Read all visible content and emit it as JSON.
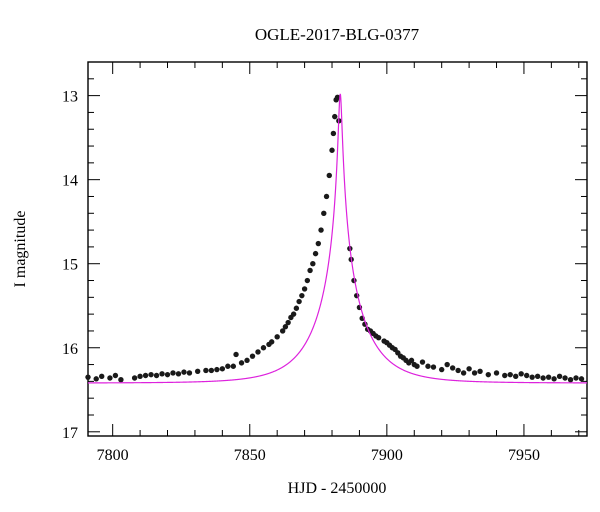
{
  "chart_data": {
    "type": "scatter",
    "title": "OGLE-2017-BLG-0377",
    "xlabel": "HJD - 2450000",
    "ylabel": "I magnitude",
    "xlim": [
      7791,
      7973
    ],
    "ylim": [
      17.05,
      12.6
    ],
    "y_inverted": true,
    "x_ticks": [
      7800,
      7850,
      7900,
      7950
    ],
    "y_ticks": [
      13,
      14,
      15,
      16,
      17
    ],
    "grid": false,
    "colors": {
      "data": "#1a1a1a",
      "model": "#dd22dd",
      "frame": "#000000"
    },
    "series": [
      {
        "kind": "points",
        "x": [
          7791,
          7794,
          7796,
          7799,
          7801,
          7803,
          7808,
          7810,
          7812,
          7814,
          7816,
          7818,
          7820,
          7822,
          7824,
          7826,
          7828,
          7831,
          7834,
          7836,
          7838,
          7840,
          7842,
          7844,
          7845,
          7847,
          7849,
          7851,
          7853,
          7855,
          7857,
          7858,
          7860,
          7862,
          7863,
          7864,
          7865,
          7866,
          7867,
          7868,
          7869,
          7870,
          7871,
          7872,
          7873,
          7874,
          7875,
          7876,
          7877,
          7878,
          7879,
          7880,
          7880.5,
          7881,
          7881.5,
          7882,
          7882.5,
          7886.5,
          7887,
          7888,
          7889,
          7890,
          7891,
          7892,
          7893,
          7894,
          7895,
          7896,
          7897,
          7899,
          7900,
          7901,
          7902,
          7903,
          7904,
          7905,
          7906,
          7907,
          7908,
          7909,
          7910,
          7911,
          7913,
          7915,
          7917,
          7920,
          7922,
          7924,
          7926,
          7928,
          7930,
          7932,
          7934,
          7937,
          7940,
          7943,
          7945,
          7947,
          7949,
          7951,
          7953,
          7955,
          7957,
          7959,
          7961,
          7963,
          7965,
          7967,
          7969,
          7971
        ],
        "y": [
          16.35,
          16.37,
          16.34,
          16.36,
          16.33,
          16.38,
          16.36,
          16.34,
          16.33,
          16.32,
          16.33,
          16.31,
          16.32,
          16.3,
          16.31,
          16.29,
          16.3,
          16.28,
          16.27,
          16.27,
          16.26,
          16.25,
          16.22,
          16.22,
          16.08,
          16.18,
          16.15,
          16.1,
          16.05,
          16.0,
          15.96,
          15.93,
          15.87,
          15.8,
          15.75,
          15.7,
          15.64,
          15.6,
          15.53,
          15.45,
          15.38,
          15.3,
          15.2,
          15.08,
          15.0,
          14.88,
          14.76,
          14.6,
          14.4,
          14.2,
          13.95,
          13.65,
          13.45,
          13.25,
          13.05,
          13.02,
          13.3,
          14.82,
          14.95,
          15.2,
          15.38,
          15.52,
          15.65,
          15.72,
          15.78,
          15.8,
          15.83,
          15.86,
          15.88,
          15.92,
          15.94,
          15.97,
          16.0,
          16.02,
          16.06,
          16.1,
          16.12,
          16.15,
          16.18,
          16.15,
          16.2,
          16.22,
          16.17,
          16.22,
          16.23,
          16.26,
          16.2,
          16.24,
          16.27,
          16.3,
          16.25,
          16.3,
          16.28,
          16.32,
          16.3,
          16.33,
          16.32,
          16.34,
          16.31,
          16.33,
          16.35,
          16.34,
          16.36,
          16.35,
          16.37,
          16.34,
          16.36,
          16.38,
          16.36,
          16.37
        ]
      },
      {
        "kind": "model",
        "name": "",
        "peak_x": 7883,
        "peak_y": 12.98,
        "baseline_y": 16.42,
        "tE": 16.5,
        "u0": 0.037
      }
    ]
  }
}
